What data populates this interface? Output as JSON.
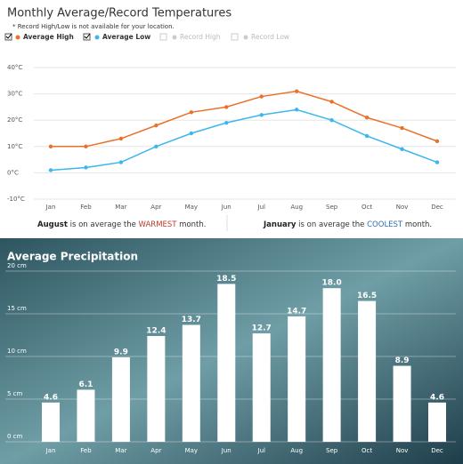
{
  "chart_data": [
    {
      "type": "line",
      "title": "Monthly Average/Record Temperatures",
      "subtitle": "* Record High/Low is not available for your location.",
      "categories": [
        "Jan",
        "Feb",
        "Mar",
        "Apr",
        "May",
        "Jun",
        "Jul",
        "Aug",
        "Sep",
        "Oct",
        "Nov",
        "Dec"
      ],
      "series": [
        {
          "name": "Average High",
          "color": "#e8722a",
          "values": [
            10,
            10,
            13,
            18,
            23,
            25,
            29,
            31,
            27,
            21,
            17,
            12
          ]
        },
        {
          "name": "Average Low",
          "color": "#3cb6ee",
          "values": [
            1,
            2,
            4,
            10,
            15,
            19,
            22,
            24,
            20,
            14,
            9,
            4
          ]
        }
      ],
      "legend_disabled": [
        "Record High",
        "Record Low"
      ],
      "ylim": [
        -10,
        40
      ],
      "yticks": [
        {
          "value": -10,
          "label": "-10°C"
        },
        {
          "value": 0,
          "label": "0°C"
        },
        {
          "value": 10,
          "label": "10°C"
        },
        {
          "value": 20,
          "label": "20°C"
        },
        {
          "value": 30,
          "label": "30°C"
        },
        {
          "value": 40,
          "label": "40°C"
        }
      ],
      "grid": true,
      "footer": {
        "left": [
          "August",
          " is on average the ",
          "WARMEST",
          " month."
        ],
        "right": [
          "January",
          " is on average the ",
          "COOLEST",
          " month."
        ]
      }
    },
    {
      "type": "bar",
      "title": "Average Precipitation",
      "categories": [
        "Jan",
        "Feb",
        "Mar",
        "Apr",
        "May",
        "Jun",
        "Jul",
        "Aug",
        "Sep",
        "Oct",
        "Nov",
        "Dec"
      ],
      "values": [
        4.6,
        6.1,
        9.9,
        12.4,
        13.7,
        18.5,
        12.7,
        14.7,
        18.0,
        16.5,
        8.9,
        4.6
      ],
      "value_labels": [
        "4.6",
        "6.1",
        "9.9",
        "12.4",
        "13.7",
        "18.5",
        "12.7",
        "14.7",
        "18.0",
        "16.5",
        "8.9",
        "4.6"
      ],
      "color": "#ffffff",
      "ylim": [
        0,
        20
      ],
      "yticks": [
        {
          "value": 0,
          "label": "0 cm"
        },
        {
          "value": 5,
          "label": "5 cm"
        },
        {
          "value": 10,
          "label": "10 cm"
        },
        {
          "value": 15,
          "label": "15 cm"
        },
        {
          "value": 20,
          "label": "20 cm"
        }
      ],
      "grid": true
    }
  ]
}
